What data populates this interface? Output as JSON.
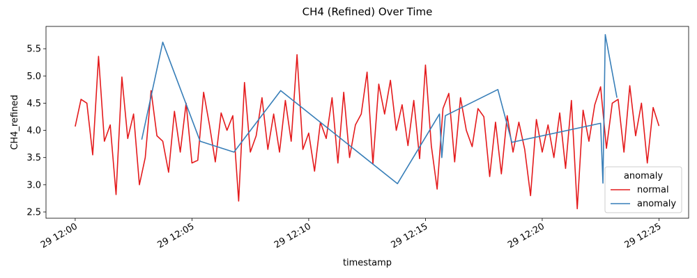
{
  "chart_data": {
    "type": "line",
    "title": "CH4 (Refined) Over Time",
    "x_label": "timestamp",
    "y_label": "CH4_refined",
    "legend_title": "anomaly",
    "legend_position": "lower right",
    "grid": false,
    "xlim": [
      -1.25,
      26.27
    ],
    "ylim": [
      2.385,
      5.91
    ],
    "xticks": [
      {
        "value": 0,
        "label": "29 12:00"
      },
      {
        "value": 5,
        "label": "29 12:05"
      },
      {
        "value": 10,
        "label": "29 12:10"
      },
      {
        "value": 15,
        "label": "29 12:15"
      },
      {
        "value": 20,
        "label": "29 12:20"
      },
      {
        "value": 25,
        "label": "29 12:25"
      }
    ],
    "yticks": [
      2.5,
      {
        "value": 3,
        "label": "3.0"
      },
      3.5,
      {
        "value": 4,
        "label": "4.0"
      },
      4.5,
      {
        "value": 5,
        "label": "5.0"
      },
      5.5
    ],
    "series": [
      {
        "name": "normal",
        "color": "#e41a1c",
        "x": [
          0,
          0.25,
          0.5,
          0.75,
          1,
          1.25,
          1.5,
          1.75,
          2,
          2.25,
          2.5,
          2.75,
          3,
          3.25,
          3.5,
          3.75,
          4,
          4.25,
          4.5,
          4.75,
          5,
          5.25,
          5.5,
          5.75,
          6,
          6.25,
          6.5,
          6.75,
          7,
          7.25,
          7.5,
          7.75,
          8,
          8.25,
          8.5,
          8.75,
          9,
          9.25,
          9.5,
          9.75,
          10,
          10.25,
          10.5,
          10.75,
          11,
          11.25,
          11.5,
          11.75,
          12,
          12.25,
          12.5,
          12.75,
          13,
          13.25,
          13.5,
          13.75,
          14,
          14.25,
          14.5,
          14.75,
          15,
          15.25,
          15.5,
          15.75,
          16,
          16.25,
          16.5,
          16.75,
          17,
          17.25,
          17.5,
          17.75,
          18,
          18.25,
          18.5,
          18.75,
          19,
          19.25,
          19.5,
          19.75,
          20,
          20.25,
          20.5,
          20.75,
          21,
          21.25,
          21.5,
          21.75,
          22,
          22.25,
          22.5,
          22.75,
          23,
          23.25,
          23.5,
          23.75,
          24,
          24.25,
          24.5,
          24.75,
          25
        ],
        "values": [
          4.07,
          4.57,
          4.5,
          3.55,
          5.36,
          3.8,
          4.1,
          2.82,
          4.98,
          3.85,
          4.3,
          3.0,
          3.5,
          4.73,
          3.9,
          3.8,
          3.23,
          4.35,
          3.6,
          4.5,
          3.4,
          3.45,
          4.7,
          4.1,
          3.42,
          4.32,
          4.0,
          4.27,
          2.7,
          4.88,
          3.6,
          3.9,
          4.6,
          3.65,
          4.3,
          3.6,
          4.55,
          3.8,
          5.39,
          3.65,
          3.95,
          3.25,
          4.15,
          3.85,
          4.6,
          3.4,
          4.7,
          3.5,
          4.1,
          4.3,
          5.07,
          3.38,
          4.85,
          4.3,
          4.92,
          4.0,
          4.47,
          3.72,
          4.55,
          3.48,
          5.2,
          3.72,
          2.92,
          4.4,
          4.68,
          3.42,
          4.6,
          4.0,
          3.7,
          4.4,
          4.25,
          3.15,
          4.15,
          3.2,
          4.27,
          3.6,
          4.15,
          3.65,
          2.8,
          4.2,
          3.6,
          4.1,
          3.5,
          4.32,
          3.3,
          4.55,
          2.56,
          4.37,
          3.8,
          4.47,
          4.8,
          3.67,
          4.5,
          4.57,
          3.6,
          4.82,
          3.9,
          4.5,
          3.4,
          4.42,
          4.08
        ]
      },
      {
        "name": "anomaly",
        "color": "#377eb8",
        "x": [
          2.85,
          3.75,
          5.35,
          6.8,
          8.8,
          13.8,
          15.6,
          15.7,
          15.85,
          18.1,
          18.7,
          22.5,
          22.6,
          22.7,
          23.2
        ],
        "values": [
          3.83,
          5.62,
          3.8,
          3.6,
          4.73,
          3.02,
          4.3,
          3.5,
          4.27,
          4.75,
          3.78,
          4.13,
          3.03,
          5.76,
          4.6
        ]
      }
    ]
  }
}
